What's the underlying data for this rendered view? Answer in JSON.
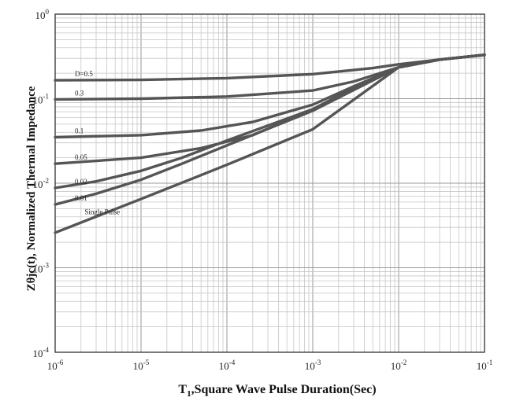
{
  "chart_data": {
    "type": "line",
    "title": "",
    "xlabel": {
      "main": "T",
      "sub": "1",
      "rest": ",Square Wave Pulse Duration(Sec)"
    },
    "ylabel": "Zθjc(t), Normalized Thermal Impedance",
    "x_scale": "log",
    "y_scale": "log",
    "xlim": [
      1e-06,
      0.1
    ],
    "ylim": [
      0.0001,
      1
    ],
    "grid": true,
    "x_ticks": [
      {
        "value": 1e-06,
        "base": "10",
        "exp": "-6"
      },
      {
        "value": 1e-05,
        "base": "10",
        "exp": "-5"
      },
      {
        "value": 0.0001,
        "base": "10",
        "exp": "-4"
      },
      {
        "value": 0.001,
        "base": "10",
        "exp": "-3"
      },
      {
        "value": 0.01,
        "base": "10",
        "exp": "-2"
      },
      {
        "value": 0.1,
        "base": "10",
        "exp": "-1"
      }
    ],
    "y_ticks": [
      {
        "value": 1,
        "base": "10",
        "exp": "0"
      },
      {
        "value": 0.1,
        "base": "10",
        "exp": "-1"
      },
      {
        "value": 0.01,
        "base": "10",
        "exp": "-2"
      },
      {
        "value": 0.001,
        "base": "10",
        "exp": "-3"
      },
      {
        "value": 0.0001,
        "base": "10",
        "exp": "-4"
      }
    ],
    "series_color": "#555555",
    "series": [
      {
        "name": "D=0.5",
        "label": "D=0.5",
        "points": [
          [
            1e-06,
            0.165
          ],
          [
            1e-05,
            0.167
          ],
          [
            0.0001,
            0.175
          ],
          [
            0.001,
            0.195
          ],
          [
            0.005,
            0.23
          ],
          [
            0.01,
            0.255
          ],
          [
            0.03,
            0.29
          ],
          [
            0.1,
            0.33
          ]
        ]
      },
      {
        "name": "0.3",
        "label": "0.3",
        "points": [
          [
            1e-06,
            0.098
          ],
          [
            1e-05,
            0.1
          ],
          [
            0.0001,
            0.106
          ],
          [
            0.001,
            0.125
          ],
          [
            0.003,
            0.16
          ],
          [
            0.01,
            0.235
          ],
          [
            0.03,
            0.29
          ],
          [
            0.1,
            0.33
          ]
        ]
      },
      {
        "name": "0.1",
        "label": "0.1",
        "points": [
          [
            1e-06,
            0.035
          ],
          [
            1e-05,
            0.037
          ],
          [
            5e-05,
            0.042
          ],
          [
            0.0002,
            0.053
          ],
          [
            0.001,
            0.085
          ],
          [
            0.003,
            0.14
          ],
          [
            0.01,
            0.235
          ],
          [
            0.03,
            0.29
          ],
          [
            0.1,
            0.33
          ]
        ]
      },
      {
        "name": "0.05",
        "label": "0.05",
        "points": [
          [
            1e-06,
            0.017
          ],
          [
            1e-05,
            0.02
          ],
          [
            5e-05,
            0.026
          ],
          [
            0.0002,
            0.037
          ],
          [
            0.001,
            0.075
          ],
          [
            0.003,
            0.135
          ],
          [
            0.01,
            0.235
          ],
          [
            0.03,
            0.29
          ],
          [
            0.1,
            0.33
          ]
        ]
      },
      {
        "name": "0.02",
        "label": "0.02",
        "points": [
          [
            1e-06,
            0.0088
          ],
          [
            3e-06,
            0.0105
          ],
          [
            1e-05,
            0.014
          ],
          [
            3e-05,
            0.02
          ],
          [
            0.0001,
            0.032
          ],
          [
            0.001,
            0.075
          ],
          [
            0.01,
            0.235
          ],
          [
            0.03,
            0.29
          ],
          [
            0.1,
            0.33
          ]
        ]
      },
      {
        "name": "0.01",
        "label": "0.01",
        "points": [
          [
            1e-06,
            0.0056
          ],
          [
            3e-06,
            0.0075
          ],
          [
            1e-05,
            0.011
          ],
          [
            3e-05,
            0.017
          ],
          [
            0.0001,
            0.028
          ],
          [
            0.001,
            0.072
          ],
          [
            0.01,
            0.235
          ],
          [
            0.03,
            0.29
          ],
          [
            0.1,
            0.33
          ]
        ]
      },
      {
        "name": "Single Pulse",
        "label": "Single Pulse",
        "points": [
          [
            1e-06,
            0.0026
          ],
          [
            1e-05,
            0.0065
          ],
          [
            0.0001,
            0.0165
          ],
          [
            0.001,
            0.0435
          ],
          [
            0.01,
            0.235
          ],
          [
            0.03,
            0.29
          ],
          [
            0.1,
            0.33
          ]
        ]
      }
    ]
  }
}
